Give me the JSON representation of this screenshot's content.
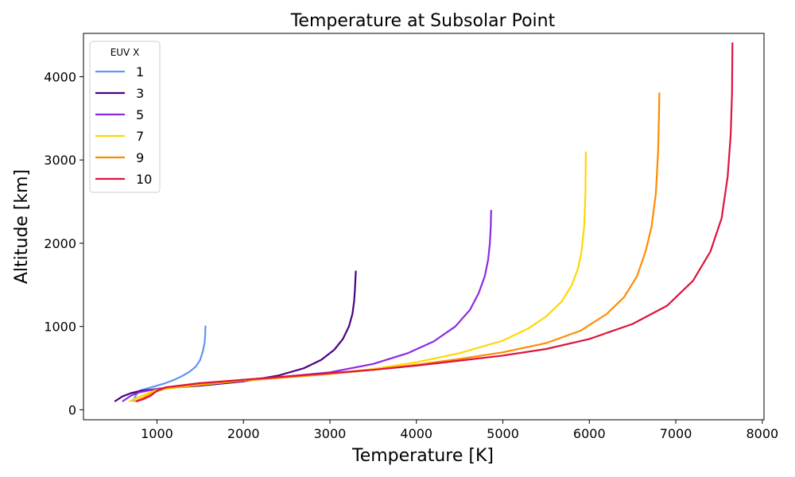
{
  "chart_data": {
    "type": "line",
    "title": "Temperature at Subsolar Point",
    "xlabel": "Temperature [K]",
    "ylabel": "Altitude [km]",
    "xlim": [
      150,
      8020
    ],
    "ylim": [
      -120,
      4520
    ],
    "xticks": [
      1000,
      2000,
      3000,
      4000,
      5000,
      6000,
      7000,
      8000
    ],
    "yticks": [
      0,
      1000,
      2000,
      3000,
      4000
    ],
    "grid": false,
    "legend": {
      "title": "EUV X",
      "placement": "top-left"
    },
    "series": [
      {
        "name": "1",
        "color": "#6495ed",
        "points": [
          [
            720,
            100
          ],
          [
            760,
            180
          ],
          [
            800,
            230
          ],
          [
            900,
            260
          ],
          [
            1000,
            290
          ],
          [
            1100,
            320
          ],
          [
            1200,
            360
          ],
          [
            1300,
            410
          ],
          [
            1380,
            460
          ],
          [
            1450,
            520
          ],
          [
            1500,
            600
          ],
          [
            1530,
            700
          ],
          [
            1550,
            800
          ],
          [
            1558,
            900
          ],
          [
            1560,
            1010
          ]
        ]
      },
      {
        "name": "3",
        "color": "#4b0082",
        "points": [
          [
            510,
            100
          ],
          [
            600,
            160
          ],
          [
            700,
            200
          ],
          [
            800,
            225
          ],
          [
            1000,
            250
          ],
          [
            1500,
            290
          ],
          [
            2000,
            340
          ],
          [
            2400,
            410
          ],
          [
            2700,
            500
          ],
          [
            2900,
            600
          ],
          [
            3050,
            720
          ],
          [
            3150,
            850
          ],
          [
            3220,
            1000
          ],
          [
            3260,
            1150
          ],
          [
            3280,
            1300
          ],
          [
            3290,
            1450
          ],
          [
            3300,
            1670
          ]
        ]
      },
      {
        "name": "5",
        "color": "#8a2be2",
        "points": [
          [
            600,
            100
          ],
          [
            700,
            170
          ],
          [
            800,
            210
          ],
          [
            1000,
            250
          ],
          [
            1500,
            310
          ],
          [
            2000,
            360
          ],
          [
            2500,
            400
          ],
          [
            3000,
            450
          ],
          [
            3500,
            550
          ],
          [
            3900,
            680
          ],
          [
            4200,
            820
          ],
          [
            4450,
            1000
          ],
          [
            4620,
            1200
          ],
          [
            4720,
            1400
          ],
          [
            4790,
            1600
          ],
          [
            4830,
            1800
          ],
          [
            4850,
            2000
          ],
          [
            4860,
            2200
          ],
          [
            4865,
            2400
          ]
        ]
      },
      {
        "name": "7",
        "color": "#ffd700",
        "points": [
          [
            680,
            100
          ],
          [
            800,
            160
          ],
          [
            900,
            200
          ],
          [
            1000,
            240
          ],
          [
            1500,
            300
          ],
          [
            2000,
            350
          ],
          [
            2500,
            390
          ],
          [
            3000,
            430
          ],
          [
            3500,
            490
          ],
          [
            4000,
            570
          ],
          [
            4500,
            680
          ],
          [
            5000,
            830
          ],
          [
            5300,
            980
          ],
          [
            5500,
            1120
          ],
          [
            5680,
            1300
          ],
          [
            5800,
            1500
          ],
          [
            5870,
            1700
          ],
          [
            5910,
            1900
          ],
          [
            5940,
            2200
          ],
          [
            5955,
            2600
          ],
          [
            5960,
            3100
          ]
        ]
      },
      {
        "name": "9",
        "color": "#ff8c00",
        "points": [
          [
            740,
            100
          ],
          [
            850,
            150
          ],
          [
            950,
            200
          ],
          [
            1100,
            260
          ],
          [
            1500,
            310
          ],
          [
            2000,
            350
          ],
          [
            2500,
            390
          ],
          [
            3000,
            430
          ],
          [
            3500,
            480
          ],
          [
            4000,
            540
          ],
          [
            4500,
            610
          ],
          [
            5000,
            690
          ],
          [
            5500,
            800
          ],
          [
            5900,
            950
          ],
          [
            6200,
            1150
          ],
          [
            6400,
            1350
          ],
          [
            6550,
            1600
          ],
          [
            6650,
            1900
          ],
          [
            6720,
            2200
          ],
          [
            6770,
            2600
          ],
          [
            6795,
            3100
          ],
          [
            6805,
            3500
          ],
          [
            6810,
            3810
          ]
        ]
      },
      {
        "name": "10",
        "color": "#dc143c",
        "points": [
          [
            760,
            100
          ],
          [
            850,
            130
          ],
          [
            930,
            170
          ],
          [
            1000,
            230
          ],
          [
            1100,
            270
          ],
          [
            1500,
            320
          ],
          [
            2000,
            360
          ],
          [
            2500,
            400
          ],
          [
            3000,
            440
          ],
          [
            3500,
            480
          ],
          [
            4000,
            530
          ],
          [
            4500,
            590
          ],
          [
            5000,
            650
          ],
          [
            5500,
            730
          ],
          [
            6000,
            850
          ],
          [
            6500,
            1030
          ],
          [
            6900,
            1250
          ],
          [
            7200,
            1550
          ],
          [
            7400,
            1900
          ],
          [
            7530,
            2300
          ],
          [
            7600,
            2800
          ],
          [
            7635,
            3300
          ],
          [
            7650,
            3800
          ],
          [
            7655,
            4410
          ]
        ]
      }
    ]
  }
}
